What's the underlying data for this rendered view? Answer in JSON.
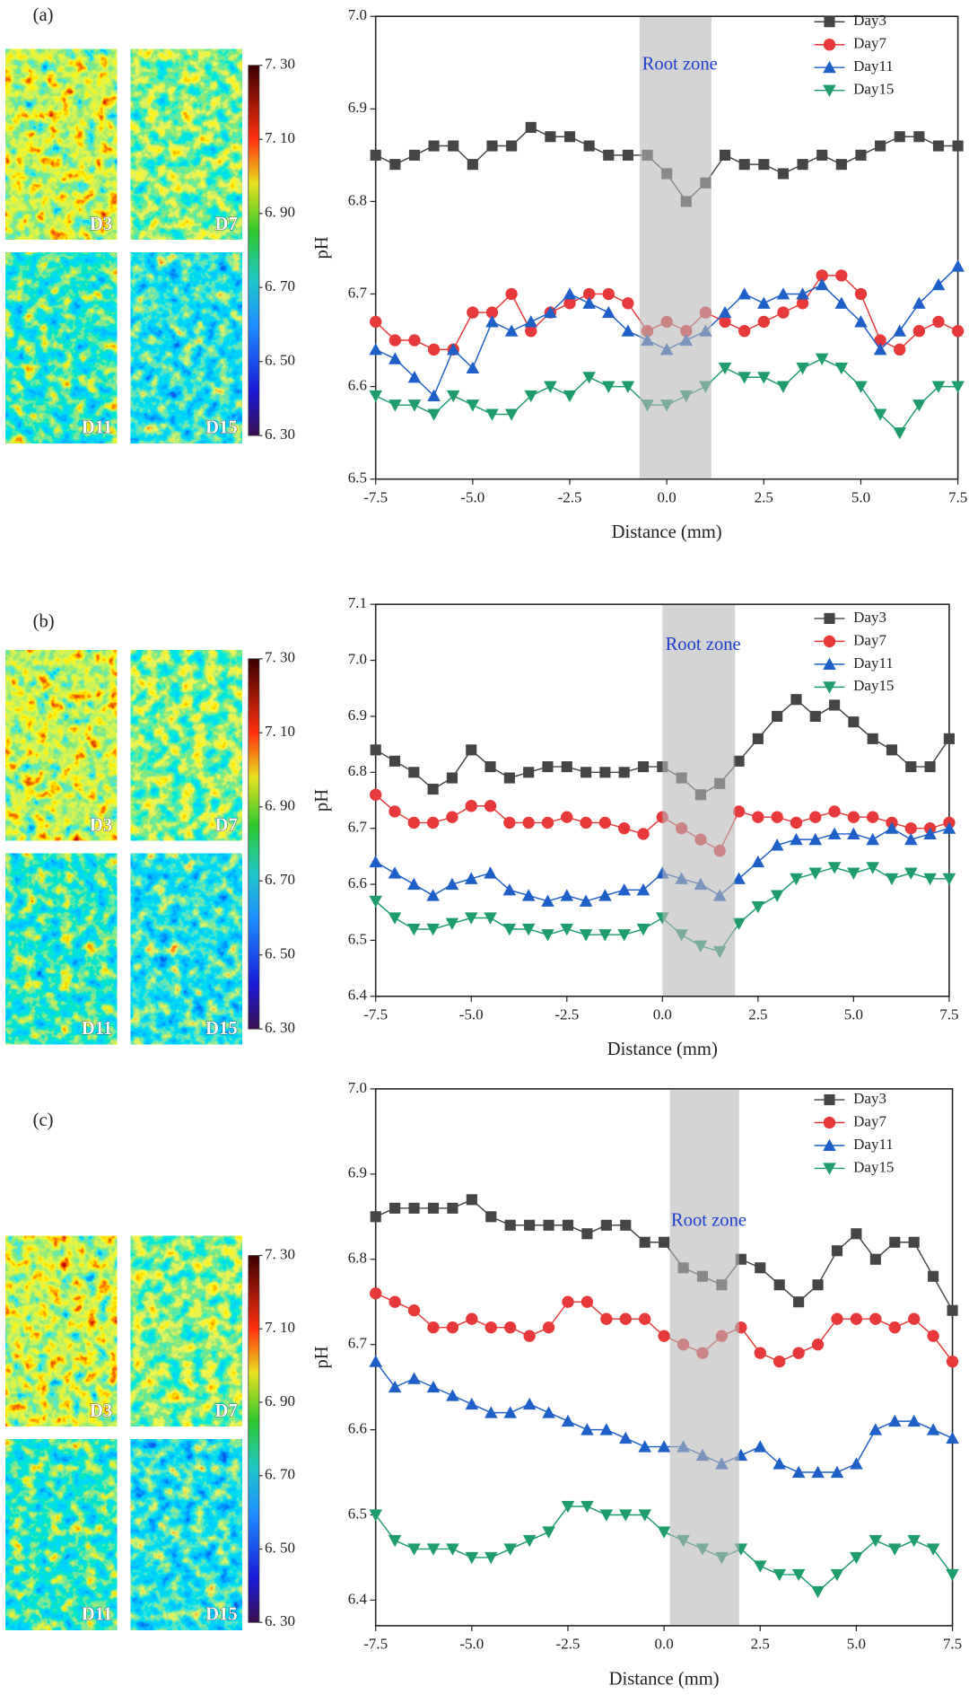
{
  "chart_data": [
    {
      "type": "line",
      "label": "(a)",
      "annotation": "Root zone",
      "xlabel": "Distance (mm)",
      "ylabel": "pH",
      "images": [
        "D3",
        "D7",
        "D11",
        "D15"
      ],
      "colorbar": {
        "lim": [
          6.3,
          7.3
        ],
        "ticks": [
          {
            "value": 6.3,
            "label": "6. 30"
          },
          {
            "value": 6.5,
            "label": "6. 50"
          },
          {
            "value": 6.7,
            "label": "6. 70"
          },
          {
            "value": 6.9,
            "label": "6. 90"
          },
          {
            "value": 7.1,
            "label": "7. 10"
          },
          {
            "value": 7.3,
            "label": "7. 30"
          }
        ]
      },
      "shade": [
        -0.7,
        1.15
      ],
      "x": [
        -7.5,
        -7,
        -6.5,
        -6,
        -5.5,
        -5,
        -4.5,
        -4,
        -3.5,
        -3,
        -2.5,
        -2,
        -1.5,
        -1,
        -0.5,
        0,
        0.5,
        1,
        1.5,
        2,
        2.5,
        3,
        3.5,
        4,
        4.5,
        5,
        5.5,
        6,
        6.5,
        7,
        7.5
      ],
      "series": [
        {
          "name": "Day3",
          "color": "#454545",
          "marker": "square",
          "values": [
            6.85,
            6.84,
            6.85,
            6.86,
            6.86,
            6.84,
            6.86,
            6.86,
            6.88,
            6.87,
            6.87,
            6.86,
            6.85,
            6.85,
            6.85,
            6.83,
            6.8,
            6.82,
            6.85,
            6.84,
            6.84,
            6.83,
            6.84,
            6.85,
            6.84,
            6.85,
            6.86,
            6.87,
            6.87,
            6.86,
            6.86
          ]
        },
        {
          "name": "Day7",
          "color": "#e8393a",
          "marker": "circle",
          "values": [
            6.67,
            6.65,
            6.65,
            6.64,
            6.64,
            6.68,
            6.68,
            6.7,
            6.66,
            6.68,
            6.69,
            6.7,
            6.7,
            6.69,
            6.66,
            6.67,
            6.66,
            6.68,
            6.67,
            6.66,
            6.67,
            6.68,
            6.69,
            6.72,
            6.72,
            6.7,
            6.65,
            6.64,
            6.66,
            6.67,
            6.66
          ]
        },
        {
          "name": "Day11",
          "color": "#1f5fc8",
          "marker": "triangle-up",
          "values": [
            6.64,
            6.63,
            6.61,
            6.59,
            6.64,
            6.62,
            6.67,
            6.66,
            6.67,
            6.68,
            6.7,
            6.69,
            6.68,
            6.66,
            6.65,
            6.64,
            6.65,
            6.66,
            6.68,
            6.7,
            6.69,
            6.7,
            6.7,
            6.71,
            6.69,
            6.67,
            6.64,
            6.66,
            6.69,
            6.71,
            6.73
          ]
        },
        {
          "name": "Day15",
          "color": "#1e9c6b",
          "marker": "triangle-down",
          "values": [
            6.59,
            6.58,
            6.58,
            6.57,
            6.59,
            6.58,
            6.57,
            6.57,
            6.59,
            6.6,
            6.59,
            6.61,
            6.6,
            6.6,
            6.58,
            6.58,
            6.59,
            6.6,
            6.62,
            6.61,
            6.61,
            6.6,
            6.62,
            6.63,
            6.62,
            6.6,
            6.57,
            6.55,
            6.58,
            6.6,
            6.6
          ]
        }
      ],
      "xlim": [
        -7.5,
        7.5
      ],
      "ylim": [
        6.5,
        7.0
      ],
      "xticks": [
        -7.5,
        {
          "value": -5,
          "label": "-5.0"
        },
        -2.5,
        {
          "value": 0,
          "label": "0.0"
        },
        2.5,
        {
          "value": 5,
          "label": "5.0"
        },
        7.5
      ],
      "yticks": [
        6.5,
        6.6,
        6.7,
        6.8,
        6.9,
        {
          "value": 7,
          "label": "7.0"
        }
      ],
      "legend": "upper right"
    },
    {
      "type": "line",
      "label": "(b)",
      "annotation": "Root zone",
      "xlabel": "Distance (mm)",
      "ylabel": "pH",
      "images": [
        "D3",
        "D7",
        "D11",
        "D15"
      ],
      "colorbar": {
        "lim": [
          6.3,
          7.3
        ],
        "ticks": [
          {
            "value": 6.3,
            "label": "6. 30"
          },
          {
            "value": 6.5,
            "label": "6. 50"
          },
          {
            "value": 6.7,
            "label": "6. 70"
          },
          {
            "value": 6.9,
            "label": "6. 90"
          },
          {
            "value": 7.1,
            "label": "7. 10"
          },
          {
            "value": 7.3,
            "label": "7. 30"
          }
        ]
      },
      "shade": [
        0,
        1.9
      ],
      "x": [
        -7.5,
        -7,
        -6.5,
        -6,
        -5.5,
        -5,
        -4.5,
        -4,
        -3.5,
        -3,
        -2.5,
        -2,
        -1.5,
        -1,
        -0.5,
        0,
        0.5,
        1,
        1.5,
        2,
        2.5,
        3,
        3.5,
        4,
        4.5,
        5,
        5.5,
        6,
        6.5,
        7,
        7.5
      ],
      "series": [
        {
          "name": "Day3",
          "color": "#454545",
          "marker": "square",
          "values": [
            6.84,
            6.82,
            6.8,
            6.77,
            6.79,
            6.84,
            6.81,
            6.79,
            6.8,
            6.81,
            6.81,
            6.8,
            6.8,
            6.8,
            6.81,
            6.81,
            6.79,
            6.76,
            6.78,
            6.82,
            6.86,
            6.9,
            6.93,
            6.9,
            6.92,
            6.89,
            6.86,
            6.84,
            6.81,
            6.81,
            6.86
          ]
        },
        {
          "name": "Day7",
          "color": "#e8393a",
          "marker": "circle",
          "values": [
            6.76,
            6.73,
            6.71,
            6.71,
            6.72,
            6.74,
            6.74,
            6.71,
            6.71,
            6.71,
            6.72,
            6.71,
            6.71,
            6.7,
            6.69,
            6.72,
            6.7,
            6.68,
            6.66,
            6.73,
            6.72,
            6.72,
            6.71,
            6.72,
            6.73,
            6.72,
            6.72,
            6.71,
            6.7,
            6.7,
            6.71
          ]
        },
        {
          "name": "Day11",
          "color": "#1f5fc8",
          "marker": "triangle-up",
          "values": [
            6.64,
            6.62,
            6.6,
            6.58,
            6.6,
            6.61,
            6.62,
            6.59,
            6.58,
            6.57,
            6.58,
            6.57,
            6.58,
            6.59,
            6.59,
            6.62,
            6.61,
            6.6,
            6.58,
            6.61,
            6.64,
            6.67,
            6.68,
            6.68,
            6.69,
            6.69,
            6.68,
            6.7,
            6.68,
            6.69,
            6.7
          ]
        },
        {
          "name": "Day15",
          "color": "#1e9c6b",
          "marker": "triangle-down",
          "values": [
            6.57,
            6.54,
            6.52,
            6.52,
            6.53,
            6.54,
            6.54,
            6.52,
            6.52,
            6.51,
            6.52,
            6.51,
            6.51,
            6.51,
            6.52,
            6.54,
            6.51,
            6.49,
            6.48,
            6.53,
            6.56,
            6.58,
            6.61,
            6.62,
            6.63,
            6.62,
            6.63,
            6.61,
            6.62,
            6.61,
            6.61
          ]
        }
      ],
      "xlim": [
        -7.5,
        7.5
      ],
      "ylim": [
        6.4,
        7.1
      ],
      "xticks": [
        -7.5,
        {
          "value": -5,
          "label": "-5.0"
        },
        -2.5,
        {
          "value": 0,
          "label": "0.0"
        },
        2.5,
        {
          "value": 5,
          "label": "5.0"
        },
        7.5
      ],
      "yticks": [
        6.4,
        6.5,
        6.6,
        6.7,
        6.8,
        6.9,
        {
          "value": 7,
          "label": "7.0"
        },
        7.1
      ],
      "legend": "upper right"
    },
    {
      "type": "line",
      "label": "(c)",
      "annotation": "Root zone",
      "xlabel": "Distance (mm)",
      "ylabel": "pH",
      "images": [
        "D3",
        "D7",
        "D11",
        "D15"
      ],
      "colorbar": {
        "lim": [
          6.3,
          7.3
        ],
        "ticks": [
          {
            "value": 6.3,
            "label": "6. 30"
          },
          {
            "value": 6.5,
            "label": "6. 50"
          },
          {
            "value": 6.7,
            "label": "6. 70"
          },
          {
            "value": 6.9,
            "label": "6. 90"
          },
          {
            "value": 7.1,
            "label": "7. 10"
          },
          {
            "value": 7.3,
            "label": "7. 30"
          }
        ]
      },
      "shade": [
        0.15,
        1.95
      ],
      "x": [
        -7.5,
        -7,
        -6.5,
        -6,
        -5.5,
        -5,
        -4.5,
        -4,
        -3.5,
        -3,
        -2.5,
        -2,
        -1.5,
        -1,
        -0.5,
        0,
        0.5,
        1,
        1.5,
        2,
        2.5,
        3,
        3.5,
        4,
        4.5,
        5,
        5.5,
        6,
        6.5,
        7,
        7.5
      ],
      "series": [
        {
          "name": "Day3",
          "color": "#454545",
          "marker": "square",
          "values": [
            6.85,
            6.86,
            6.86,
            6.86,
            6.86,
            6.87,
            6.85,
            6.84,
            6.84,
            6.84,
            6.84,
            6.83,
            6.84,
            6.84,
            6.82,
            6.82,
            6.79,
            6.78,
            6.77,
            6.8,
            6.79,
            6.77,
            6.75,
            6.77,
            6.81,
            6.83,
            6.8,
            6.82,
            6.82,
            6.78,
            6.74
          ]
        },
        {
          "name": "Day7",
          "color": "#e8393a",
          "marker": "circle",
          "values": [
            6.76,
            6.75,
            6.74,
            6.72,
            6.72,
            6.73,
            6.72,
            6.72,
            6.71,
            6.72,
            6.75,
            6.75,
            6.73,
            6.73,
            6.73,
            6.71,
            6.7,
            6.69,
            6.71,
            6.72,
            6.69,
            6.68,
            6.69,
            6.7,
            6.73,
            6.73,
            6.73,
            6.72,
            6.73,
            6.71,
            6.68
          ]
        },
        {
          "name": "Day11",
          "color": "#1f5fc8",
          "marker": "triangle-up",
          "values": [
            6.68,
            6.65,
            6.66,
            6.65,
            6.64,
            6.63,
            6.62,
            6.62,
            6.63,
            6.62,
            6.61,
            6.6,
            6.6,
            6.59,
            6.58,
            6.58,
            6.58,
            6.57,
            6.56,
            6.57,
            6.58,
            6.56,
            6.55,
            6.55,
            6.55,
            6.56,
            6.6,
            6.61,
            6.61,
            6.6,
            6.59
          ]
        },
        {
          "name": "Day15",
          "color": "#1e9c6b",
          "marker": "triangle-down",
          "values": [
            6.5,
            6.47,
            6.46,
            6.46,
            6.46,
            6.45,
            6.45,
            6.46,
            6.47,
            6.48,
            6.51,
            6.51,
            6.5,
            6.5,
            6.5,
            6.48,
            6.47,
            6.46,
            6.45,
            6.46,
            6.44,
            6.43,
            6.43,
            6.41,
            6.43,
            6.45,
            6.47,
            6.46,
            6.47,
            6.46,
            6.43
          ]
        }
      ],
      "xlim": [
        -7.5,
        7.5
      ],
      "ylim": [
        6.37,
        7.0
      ],
      "xticks": [
        -7.5,
        {
          "value": -5,
          "label": "-5.0"
        },
        -2.5,
        {
          "value": 0,
          "label": "0.0"
        },
        2.5,
        {
          "value": 5,
          "label": "5.0"
        },
        7.5
      ],
      "yticks": [
        6.4,
        6.5,
        6.6,
        6.7,
        6.8,
        6.9,
        {
          "value": 7,
          "label": "7.0"
        }
      ],
      "legend": "upper right"
    }
  ]
}
